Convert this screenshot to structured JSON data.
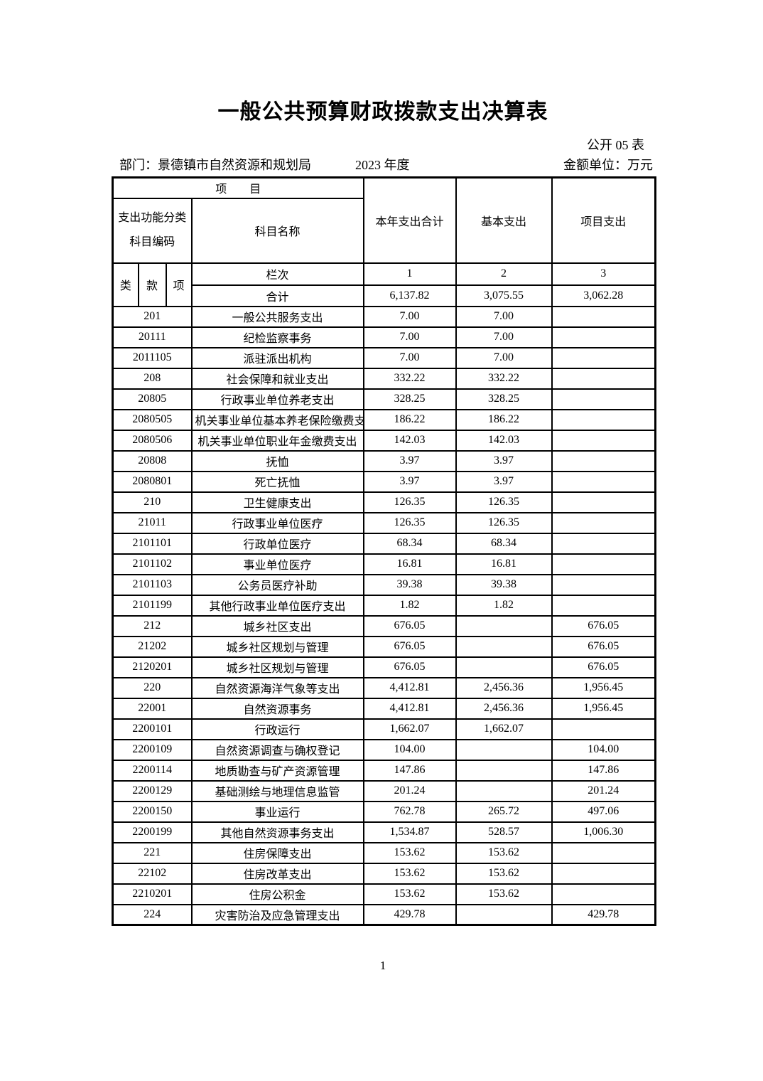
{
  "title": "一般公共预算财政拨款支出决算表",
  "sheet_label": "公开 05 表",
  "meta": {
    "department": "部门：景德镇市自然资源和规划局",
    "year": "2023 年度",
    "unit": "金额单位：万元"
  },
  "table": {
    "header": {
      "project": "项　　目",
      "code_line1": "支出功能分类",
      "code_line2": "科目编码",
      "subject_name": "科目名称",
      "col_year_total": "本年支出合计",
      "col_basic": "基本支出",
      "col_project": "项目支出",
      "col_class": "类",
      "col_section": "款",
      "col_item": "项",
      "lanci_label": "栏次",
      "col_nums": [
        "1",
        "2",
        "3"
      ],
      "total_label": "合计",
      "totals": [
        "6,137.82",
        "3,075.55",
        "3,062.28"
      ]
    },
    "rows": [
      {
        "code": "201",
        "name": "一般公共服务支出",
        "total": "7.00",
        "basic": "7.00",
        "project": ""
      },
      {
        "code": "20111",
        "name": "纪检监察事务",
        "total": "7.00",
        "basic": "7.00",
        "project": ""
      },
      {
        "code": "2011105",
        "name": "派驻派出机构",
        "total": "7.00",
        "basic": "7.00",
        "project": ""
      },
      {
        "code": "208",
        "name": "社会保障和就业支出",
        "total": "332.22",
        "basic": "332.22",
        "project": ""
      },
      {
        "code": "20805",
        "name": "行政事业单位养老支出",
        "total": "328.25",
        "basic": "328.25",
        "project": ""
      },
      {
        "code": "2080505",
        "name": "机关事业单位基本养老保险缴费支",
        "total": "186.22",
        "basic": "186.22",
        "project": ""
      },
      {
        "code": "2080506",
        "name": "机关事业单位职业年金缴费支出",
        "total": "142.03",
        "basic": "142.03",
        "project": ""
      },
      {
        "code": "20808",
        "name": "抚恤",
        "total": "3.97",
        "basic": "3.97",
        "project": ""
      },
      {
        "code": "2080801",
        "name": "死亡抚恤",
        "total": "3.97",
        "basic": "3.97",
        "project": ""
      },
      {
        "code": "210",
        "name": "卫生健康支出",
        "total": "126.35",
        "basic": "126.35",
        "project": ""
      },
      {
        "code": "21011",
        "name": "行政事业单位医疗",
        "total": "126.35",
        "basic": "126.35",
        "project": ""
      },
      {
        "code": "2101101",
        "name": "行政单位医疗",
        "total": "68.34",
        "basic": "68.34",
        "project": ""
      },
      {
        "code": "2101102",
        "name": "事业单位医疗",
        "total": "16.81",
        "basic": "16.81",
        "project": ""
      },
      {
        "code": "2101103",
        "name": "公务员医疗补助",
        "total": "39.38",
        "basic": "39.38",
        "project": ""
      },
      {
        "code": "2101199",
        "name": "其他行政事业单位医疗支出",
        "total": "1.82",
        "basic": "1.82",
        "project": ""
      },
      {
        "code": "212",
        "name": "城乡社区支出",
        "total": "676.05",
        "basic": "",
        "project": "676.05"
      },
      {
        "code": "21202",
        "name": "城乡社区规划与管理",
        "total": "676.05",
        "basic": "",
        "project": "676.05"
      },
      {
        "code": "2120201",
        "name": "城乡社区规划与管理",
        "total": "676.05",
        "basic": "",
        "project": "676.05"
      },
      {
        "code": "220",
        "name": "自然资源海洋气象等支出",
        "total": "4,412.81",
        "basic": "2,456.36",
        "project": "1,956.45"
      },
      {
        "code": "22001",
        "name": "自然资源事务",
        "total": "4,412.81",
        "basic": "2,456.36",
        "project": "1,956.45"
      },
      {
        "code": "2200101",
        "name": "行政运行",
        "total": "1,662.07",
        "basic": "1,662.07",
        "project": ""
      },
      {
        "code": "2200109",
        "name": "自然资源调查与确权登记",
        "total": "104.00",
        "basic": "",
        "project": "104.00"
      },
      {
        "code": "2200114",
        "name": "地质勘查与矿产资源管理",
        "total": "147.86",
        "basic": "",
        "project": "147.86"
      },
      {
        "code": "2200129",
        "name": "基础测绘与地理信息监管",
        "total": "201.24",
        "basic": "",
        "project": "201.24"
      },
      {
        "code": "2200150",
        "name": "事业运行",
        "total": "762.78",
        "basic": "265.72",
        "project": "497.06"
      },
      {
        "code": "2200199",
        "name": "其他自然资源事务支出",
        "total": "1,534.87",
        "basic": "528.57",
        "project": "1,006.30"
      },
      {
        "code": "221",
        "name": "住房保障支出",
        "total": "153.62",
        "basic": "153.62",
        "project": ""
      },
      {
        "code": "22102",
        "name": "住房改革支出",
        "total": "153.62",
        "basic": "153.62",
        "project": ""
      },
      {
        "code": "2210201",
        "name": "住房公积金",
        "total": "153.62",
        "basic": "153.62",
        "project": ""
      },
      {
        "code": "224",
        "name": "灾害防治及应急管理支出",
        "total": "429.78",
        "basic": "",
        "project": "429.78"
      }
    ]
  },
  "page_number": "1"
}
